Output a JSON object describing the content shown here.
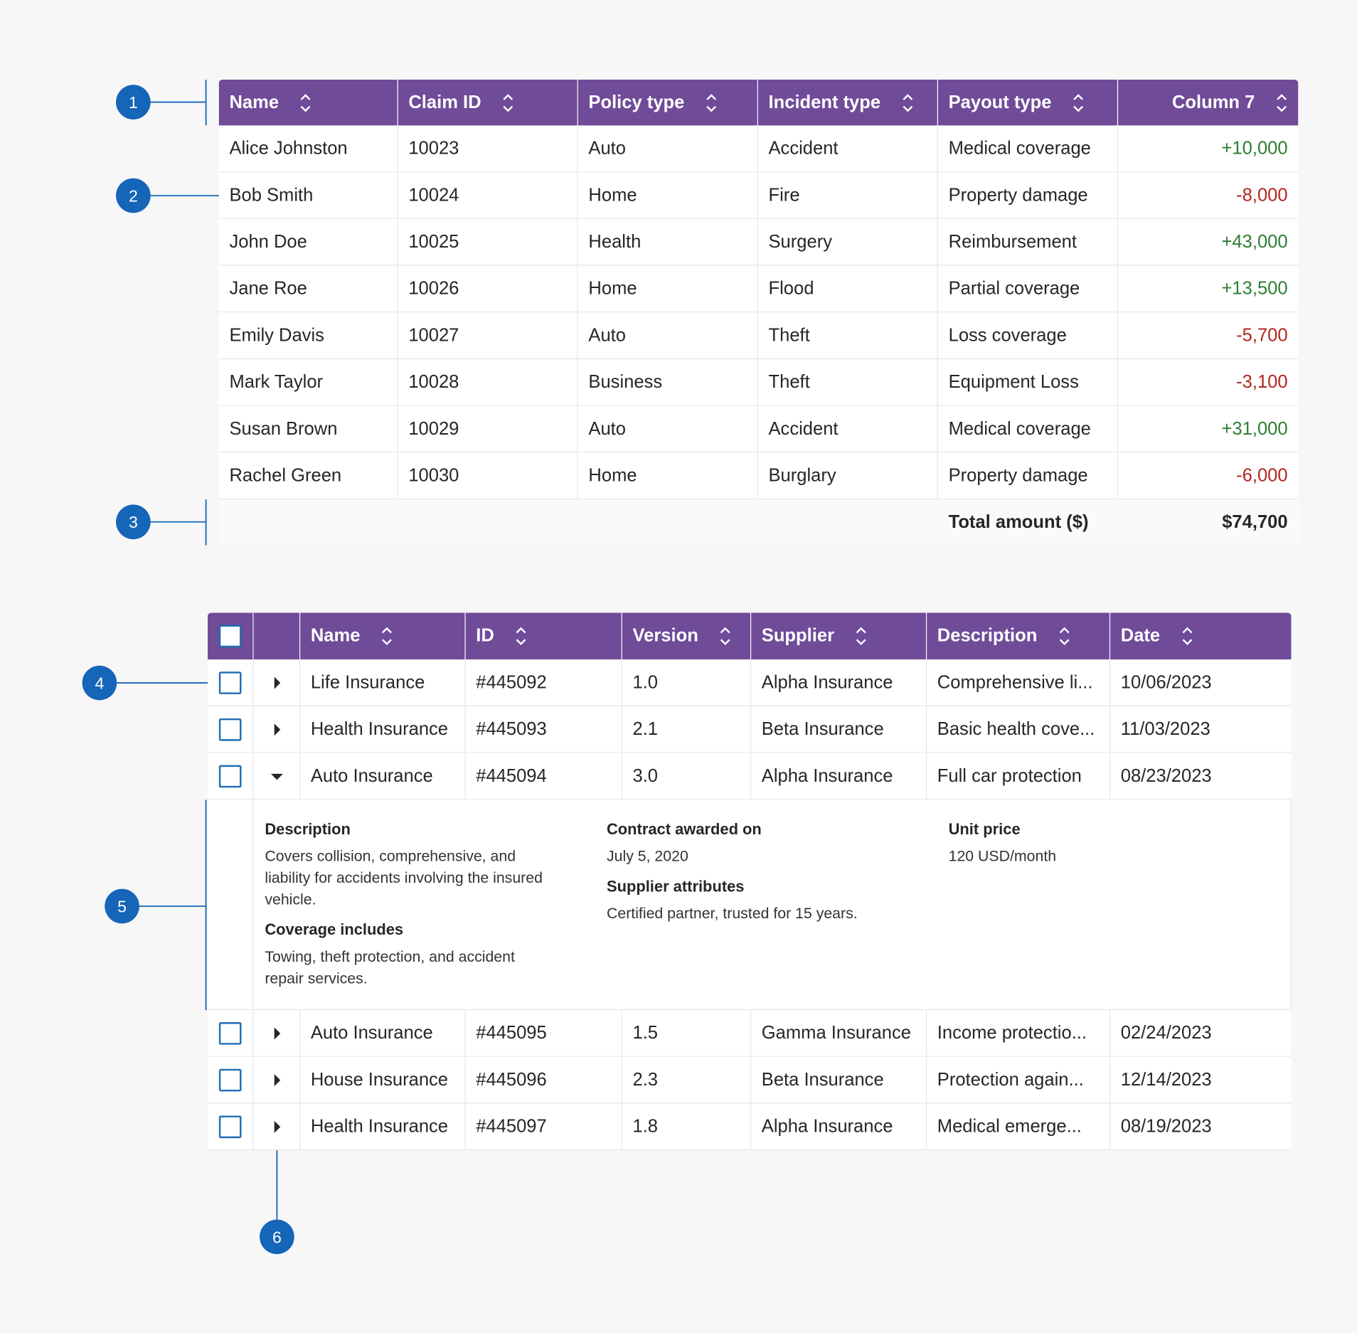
{
  "table1": {
    "headers": [
      "Name",
      "Claim ID",
      "Policy type",
      "Incident type",
      "Payout type",
      "Column 7"
    ],
    "rows": [
      [
        "Alice Johnston",
        "10023",
        "Auto",
        "Accident",
        "Medical coverage",
        "+10,000"
      ],
      [
        "Bob Smith",
        "10024",
        "Home",
        "Fire",
        "Property damage",
        "-8,000"
      ],
      [
        "John Doe",
        "10025",
        "Health",
        "Surgery",
        "Reimbursement",
        "+43,000"
      ],
      [
        "Jane Roe",
        "10026",
        "Home",
        "Flood",
        "Partial coverage",
        "+13,500"
      ],
      [
        "Emily Davis",
        "10027",
        "Auto",
        "Theft",
        "Loss coverage",
        "-5,700"
      ],
      [
        "Mark Taylor",
        "10028",
        "Business",
        "Theft",
        "Equipment Loss",
        "-3,100"
      ],
      [
        "Susan Brown",
        "10029",
        "Auto",
        "Accident",
        "Medical coverage",
        "+31,000"
      ],
      [
        "Rachel Green",
        "10030",
        "Home",
        "Burglary",
        "Property damage",
        "-6,000"
      ]
    ],
    "footer": {
      "label": "Total amount ($)",
      "value": "$74,700"
    }
  },
  "table2": {
    "headers": [
      "Name",
      "ID",
      "Version",
      "Supplier",
      "Description",
      "Date"
    ],
    "rows": [
      {
        "cells": [
          "Life Insurance",
          "#445092",
          "1.0",
          "Alpha Insurance",
          "Comprehensive li...",
          "10/06/2023"
        ]
      },
      {
        "cells": [
          "Health Insurance",
          "#445093",
          "2.1",
          "Beta Insurance",
          "Basic health cove...",
          "11/03/2023"
        ]
      },
      {
        "cells": [
          "Auto Insurance",
          "#445094",
          "3.0",
          "Alpha Insurance",
          "Full car protection",
          "08/23/2023"
        ],
        "details": [
          [
            {
              "title": "Description",
              "text": "Covers collision, comprehensive, and liability for accidents involving the insured vehicle."
            },
            {
              "title": "Coverage includes",
              "text": "Towing, theft protection, and accident repair services."
            }
          ],
          [
            {
              "title": "Contract awarded on",
              "text": "July 5, 2020"
            },
            {
              "title": "Supplier attributes",
              "text": "Certified partner, trusted for 15 years."
            }
          ],
          [
            {
              "title": "Unit price",
              "text": "120 USD/month"
            }
          ]
        ]
      },
      {
        "cells": [
          "Auto Insurance",
          "#445095",
          "1.5",
          "Gamma Insurance",
          "Income protectio...",
          "02/24/2023"
        ]
      },
      {
        "cells": [
          "House Insurance",
          "#445096",
          "2.3",
          "Beta Insurance",
          "Protection again...",
          "12/14/2023"
        ]
      },
      {
        "cells": [
          "Health Insurance",
          "#445097",
          "1.8",
          "Alpha Insurance",
          "Medical emerge...",
          "08/19/2023"
        ]
      }
    ]
  },
  "callouts": [
    "1",
    "2",
    "3",
    "4",
    "5",
    "6"
  ]
}
